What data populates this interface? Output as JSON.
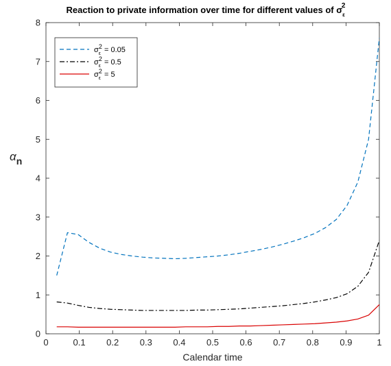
{
  "chart_data": {
    "type": "line",
    "title": "Reaction to private information over time for different values of σ",
    "title_symbol_sub": "ε",
    "title_symbol_sup": "2",
    "xlabel": "Calendar time",
    "ylabel": "α",
    "ylabel_sub": "n",
    "xlim": [
      0,
      1
    ],
    "ylim": [
      0,
      8
    ],
    "xticks": [
      0,
      0.1,
      0.2,
      0.3,
      0.4,
      0.5,
      0.6,
      0.7,
      0.8,
      0.9,
      1
    ],
    "xtick_labels": [
      "0",
      "0.1",
      "0.2",
      "0.3",
      "0.4",
      "0.5",
      "0.6",
      "0.7",
      "0.8",
      "0.9",
      "1"
    ],
    "yticks": [
      0,
      1,
      2,
      3,
      4,
      5,
      6,
      7,
      8
    ],
    "ytick_labels": [
      "0",
      "1",
      "2",
      "3",
      "4",
      "5",
      "6",
      "7",
      "8"
    ],
    "grid": false,
    "legend_position": "top-left",
    "x": [
      0.0323,
      0.0645,
      0.0968,
      0.129,
      0.1613,
      0.1935,
      0.2258,
      0.2581,
      0.2903,
      0.3226,
      0.3548,
      0.3871,
      0.4194,
      0.4516,
      0.4839,
      0.5161,
      0.5484,
      0.5806,
      0.6129,
      0.6452,
      0.6774,
      0.7097,
      0.7419,
      0.7742,
      0.8065,
      0.8387,
      0.871,
      0.9032,
      0.9355,
      0.9677,
      1.0
    ],
    "series": [
      {
        "name": "σ",
        "name_sub": "ε",
        "name_sup": "2",
        "name_suffix": " = 0.05",
        "color": "#0072BD",
        "dash": "dashed",
        "values": [
          1.5,
          2.6,
          2.55,
          2.35,
          2.2,
          2.1,
          2.04,
          2.0,
          1.97,
          1.95,
          1.94,
          1.93,
          1.94,
          1.96,
          1.98,
          2.0,
          2.03,
          2.07,
          2.12,
          2.17,
          2.23,
          2.3,
          2.38,
          2.47,
          2.58,
          2.73,
          2.94,
          3.3,
          3.9,
          5.0,
          7.6
        ]
      },
      {
        "name": "σ",
        "name_sub": "ε",
        "name_sup": "2",
        "name_suffix": " = 0.5",
        "color": "#000000",
        "dash": "dashdot",
        "values": [
          0.82,
          0.79,
          0.73,
          0.68,
          0.65,
          0.63,
          0.62,
          0.61,
          0.6,
          0.6,
          0.6,
          0.6,
          0.6,
          0.61,
          0.61,
          0.62,
          0.63,
          0.64,
          0.66,
          0.68,
          0.7,
          0.72,
          0.75,
          0.78,
          0.82,
          0.87,
          0.93,
          1.03,
          1.22,
          1.58,
          2.4
        ]
      },
      {
        "name": "σ",
        "name_sub": "ε",
        "name_sup": "2",
        "name_suffix": " = 5",
        "color": "#D90000",
        "dash": "solid",
        "values": [
          0.18,
          0.18,
          0.17,
          0.17,
          0.17,
          0.17,
          0.17,
          0.17,
          0.17,
          0.17,
          0.17,
          0.17,
          0.18,
          0.18,
          0.18,
          0.19,
          0.19,
          0.2,
          0.2,
          0.21,
          0.22,
          0.23,
          0.24,
          0.25,
          0.26,
          0.28,
          0.3,
          0.33,
          0.38,
          0.48,
          0.75
        ]
      }
    ]
  }
}
